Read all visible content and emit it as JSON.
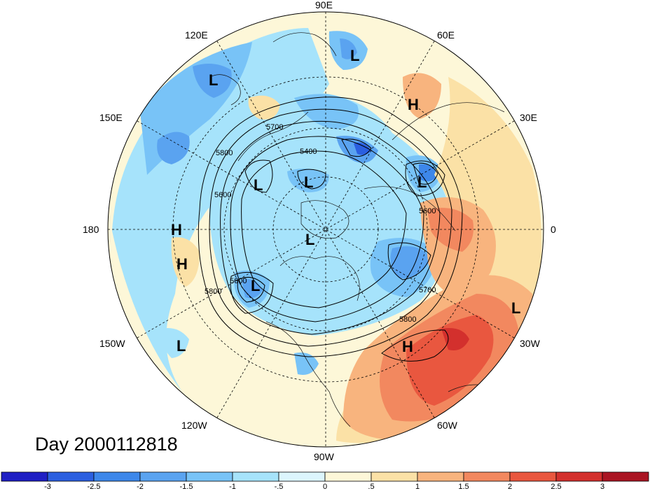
{
  "title": "Day 2000112818",
  "lon_labels": [
    {
      "text": "90E",
      "pos": "top"
    },
    {
      "text": "60E",
      "pos": "top-right-1"
    },
    {
      "text": "30E",
      "pos": "top-right-2"
    },
    {
      "text": "0",
      "pos": "right"
    },
    {
      "text": "30W",
      "pos": "bottom-right-2"
    },
    {
      "text": "60W",
      "pos": "bottom-right-1"
    },
    {
      "text": "90W",
      "pos": "bottom"
    },
    {
      "text": "120W",
      "pos": "bottom-left-1"
    },
    {
      "text": "150W",
      "pos": "bottom-left-2"
    },
    {
      "text": "180",
      "pos": "left"
    },
    {
      "text": "150E",
      "pos": "top-left-2"
    },
    {
      "text": "120E",
      "pos": "top-left-1"
    }
  ],
  "contour_labels": [
    "5700",
    "5400",
    "5800",
    "5600",
    "5600",
    "5800",
    "5700",
    "5800",
    "5600"
  ],
  "centers": [
    "L",
    "H",
    "L",
    "L",
    "L",
    "L",
    "L",
    "H",
    "H",
    "L",
    "L",
    "L",
    "H",
    "L"
  ],
  "colorbar": {
    "colors": [
      "#1f1fc4",
      "#2b5fe0",
      "#3d87ea",
      "#5aa3f0",
      "#78c3f7",
      "#a6e3fb",
      "#dcf5fd",
      "#fdf7d8",
      "#fbe1a6",
      "#f8b47e",
      "#f2885f",
      "#e9573f",
      "#d3302d",
      "#aa1523"
    ],
    "ticks": [
      "-3",
      "-2.5",
      "-2",
      "-1.5",
      "-1",
      "-.5",
      "0",
      ".5",
      "1",
      "1.5",
      "2",
      "2.5",
      "3"
    ]
  },
  "colors": {
    "background": "#ffffff",
    "neutral": "#fdf7d8",
    "cold": "#5aa3f0",
    "warm": "#e9573f"
  }
}
